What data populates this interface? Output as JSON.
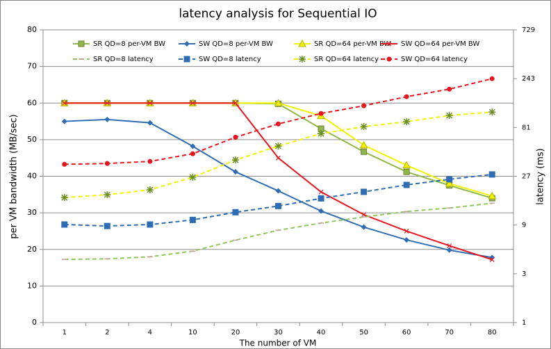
{
  "chart_data": {
    "type": "line",
    "title": "latency analysis for Sequential IO",
    "x_label": "The number of VM",
    "y_label": "per VM bandwidth (MB/sec)",
    "y2_label": "latency (ms)",
    "categories": [
      "1",
      "2",
      "4",
      "10",
      "20",
      "30",
      "40",
      "50",
      "60",
      "70",
      "80"
    ],
    "ylim": [
      0,
      80
    ],
    "yticks": [
      0,
      10,
      20,
      30,
      40,
      50,
      60,
      70,
      80
    ],
    "y2lim": [
      1,
      729
    ],
    "y2ticks": [
      1,
      3,
      9,
      27,
      81,
      243,
      729
    ],
    "y2scale": "log",
    "grid": true,
    "series": [
      {
        "name": "SR QD=8 per-VM BW",
        "color": "#8fb848",
        "marker": "square",
        "dashed": false,
        "values": [
          60,
          60,
          60,
          60,
          60,
          59.8,
          53,
          46.7,
          41.2,
          37.5,
          34
        ]
      },
      {
        "name": "SW QD=8 per-VM BW",
        "color": "#2e6db4",
        "marker": "diamond",
        "dashed": false,
        "values": [
          55,
          55.5,
          54.6,
          48.2,
          41.2,
          36,
          30.5,
          26.1,
          22.6,
          19.8,
          17.8
        ]
      },
      {
        "name": "SR QD=64 per-VM BW",
        "color": "#f2f200",
        "marker": "triangle",
        "dashed": false,
        "values": [
          60,
          60,
          60,
          60,
          60,
          60,
          56.5,
          48.5,
          43,
          38,
          34.6
        ]
      },
      {
        "name": "SW QD=64 per-VM BW",
        "color": "#e8141e",
        "marker": "cross",
        "dashed": false,
        "values": [
          60,
          60,
          60,
          60,
          60,
          45,
          35.7,
          29.5,
          25,
          21,
          17.2
        ]
      },
      {
        "name": "SR QD=8 latency",
        "color": "#8fc85a",
        "marker": "dash",
        "dashed": true,
        "axis": "y2",
        "values": [
          4.15,
          4.2,
          4.4,
          5.0,
          6.4,
          8.0,
          9.4,
          10.8,
          12.2,
          13.2,
          14.7
        ]
      },
      {
        "name": "SW QD=8 latency",
        "color": "#2e6db4",
        "marker": "square",
        "dashed": true,
        "axis": "y2",
        "values": [
          9.1,
          8.8,
          9.1,
          10.1,
          12.0,
          13.8,
          16.4,
          19.0,
          22.2,
          25.2,
          28.1
        ]
      },
      {
        "name": "SR QD=64 latency",
        "color": "#f2f200",
        "marker": "star",
        "dashed": true,
        "axis": "y2",
        "values": [
          16.7,
          17.8,
          19.9,
          26.4,
          38.9,
          53.3,
          70.5,
          82.5,
          92.2,
          106,
          114.7
        ]
      },
      {
        "name": "SW QD=64 latency",
        "color": "#e8141e",
        "marker": "circle",
        "dashed": true,
        "axis": "y2",
        "values": [
          35.3,
          36,
          37.7,
          44.8,
          65,
          87.7,
          111,
          132,
          162,
          192,
          243
        ]
      }
    ]
  }
}
